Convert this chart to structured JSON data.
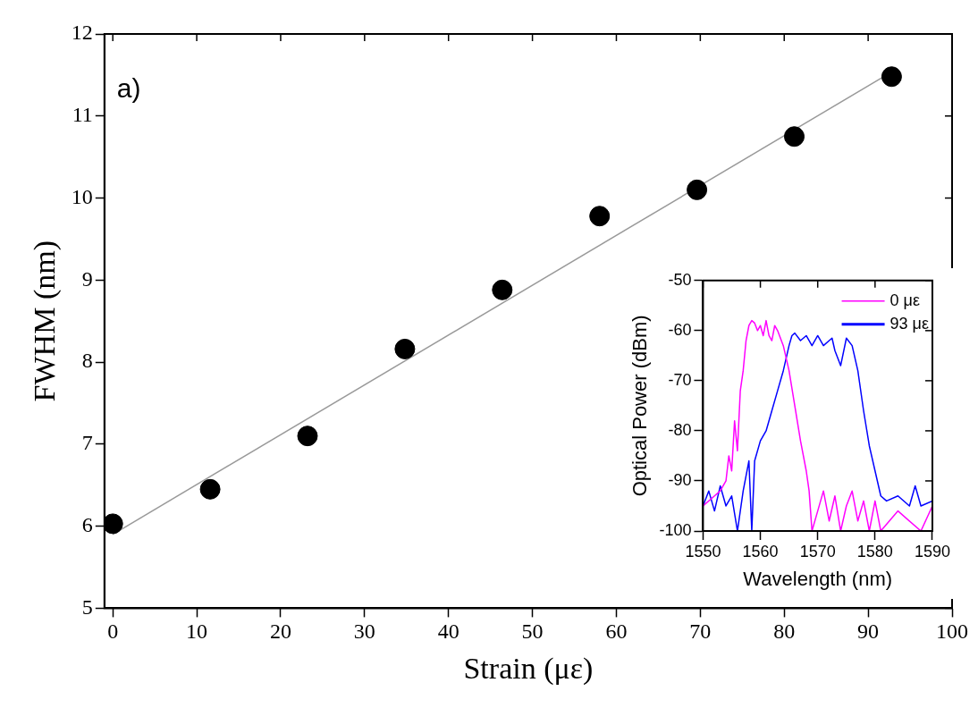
{
  "chart_data": [
    {
      "type": "scatter",
      "xlabel": "Strain (με)",
      "ylabel": "FWHM (nm)",
      "xlim": [
        -1,
        100
      ],
      "ylim": [
        5,
        12
      ],
      "xticks": [
        0,
        10,
        20,
        30,
        40,
        50,
        60,
        70,
        80,
        90,
        100
      ],
      "yticks": [
        5,
        6,
        7,
        8,
        9,
        10,
        11,
        12
      ],
      "annotations": [
        "a)"
      ],
      "series": [
        {
          "marker": "circle",
          "color": "#000000",
          "x": [
            0,
            11.6,
            23.2,
            34.8,
            46.4,
            58,
            69.6,
            81.2,
            92.8
          ],
          "values": [
            6.03,
            6.45,
            7.1,
            8.16,
            8.88,
            9.78,
            10.1,
            10.75,
            11.48
          ]
        },
        {
          "type": "line",
          "marker": "none",
          "color": "#999999",
          "x": [
            0,
            93
          ],
          "values": [
            5.9,
            11.55
          ]
        }
      ]
    },
    {
      "type": "line",
      "xlabel": "Wavelength (nm)",
      "ylabel": "Optical Power (dBm)",
      "xlim": [
        1550,
        1590
      ],
      "ylim": [
        -100,
        -50
      ],
      "xticks": [
        1550,
        1560,
        1570,
        1580,
        1590
      ],
      "yticks": [
        -100,
        -90,
        -80,
        -70,
        -60,
        -50
      ],
      "legend": "top right",
      "marker": "none",
      "series": [
        {
          "name": "0 με",
          "color": "#ff00ff",
          "x": [
            1550,
            1552,
            1553,
            1554,
            1554.5,
            1555,
            1555.5,
            1556,
            1556.5,
            1557,
            1557.5,
            1558,
            1558.5,
            1559,
            1559.5,
            1560,
            1560.5,
            1561,
            1561.5,
            1562,
            1562.5,
            1563,
            1564,
            1565,
            1566,
            1567,
            1568,
            1568.5,
            1569,
            1570,
            1571,
            1572,
            1573,
            1574,
            1575,
            1576,
            1577,
            1578,
            1579,
            1580,
            1581,
            1584,
            1588,
            1590
          ],
          "values": [
            -95,
            -93,
            -92,
            -90,
            -85,
            -88,
            -78,
            -84,
            -72,
            -68,
            -62,
            -59,
            -58,
            -58.5,
            -60,
            -59,
            -61,
            -58,
            -61,
            -62,
            -59,
            -60,
            -63,
            -68,
            -75,
            -82,
            -88,
            -92,
            -100,
            -96,
            -92,
            -98,
            -93,
            -100,
            -95,
            -92,
            -98,
            -94,
            -100,
            -94,
            -100,
            -96,
            -100,
            -95
          ]
        },
        {
          "name": "93 με",
          "color": "#0000ff",
          "x": [
            1550,
            1551,
            1552,
            1553,
            1554,
            1555,
            1556,
            1557,
            1558,
            1558.5,
            1559,
            1560,
            1561,
            1562,
            1563,
            1564,
            1565,
            1565.5,
            1566,
            1567,
            1568,
            1569,
            1570,
            1571,
            1572,
            1572.5,
            1573,
            1574,
            1575,
            1576,
            1577,
            1578,
            1579,
            1580,
            1581,
            1582,
            1584,
            1586,
            1587,
            1588,
            1590
          ],
          "values": [
            -95,
            -92,
            -96,
            -91,
            -95,
            -93,
            -100,
            -92,
            -86,
            -100,
            -86,
            -82,
            -80,
            -76,
            -72,
            -68,
            -63,
            -61,
            -60.5,
            -62,
            -61,
            -63,
            -61,
            -63,
            -62,
            -61.5,
            -64,
            -67,
            -61.5,
            -63,
            -68,
            -76,
            -83,
            -88,
            -93,
            -94,
            -93,
            -95,
            -91,
            -95,
            -94
          ]
        }
      ]
    }
  ]
}
